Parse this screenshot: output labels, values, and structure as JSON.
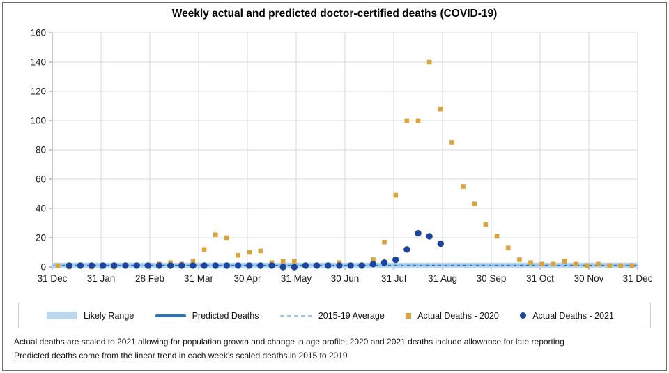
{
  "chart_data": {
    "type": "scatter",
    "title": "Weekly actual and predicted doctor-certified deaths (COVID-19)",
    "xlabel": "",
    "ylabel": "",
    "x_unit": "week of year (weekly points, Jan–Dec)",
    "x_tick_labels": [
      "31 Dec",
      "31 Jan",
      "28 Feb",
      "31 Mar",
      "30 Apr",
      "31 May",
      "30 Jun",
      "31 Jul",
      "31 Aug",
      "30 Sep",
      "31 Oct",
      "30 Nov",
      "31 Dec"
    ],
    "ylim": [
      0,
      160
    ],
    "yticks": [
      0,
      20,
      40,
      60,
      80,
      100,
      120,
      140,
      160
    ],
    "grid": true,
    "weeks": 52,
    "legend_position": "bottom",
    "series": [
      {
        "name": "Likely Range",
        "type": "band",
        "color": "#BDD7EE",
        "low": 0,
        "high": 3
      },
      {
        "name": "Predicted Deaths",
        "type": "line",
        "color": "#2E74B5",
        "value": 1
      },
      {
        "name": "2015-19 Average",
        "type": "line-dashed",
        "color": "#9DC3E6",
        "value": 1
      },
      {
        "name": "Actual Deaths - 2020",
        "type": "scatter",
        "marker": "square",
        "color": "#D9A43C",
        "weekly_values": [
          1,
          0,
          1,
          0,
          1,
          0,
          1,
          1,
          1,
          2,
          3,
          2,
          4,
          12,
          22,
          20,
          8,
          10,
          11,
          3,
          4,
          4,
          1,
          1,
          1,
          3,
          1,
          1,
          5,
          17,
          49,
          100,
          100,
          140,
          108,
          85,
          55,
          43,
          29,
          21,
          13,
          5,
          3,
          2,
          2,
          4,
          2,
          1,
          2,
          1,
          1,
          1
        ]
      },
      {
        "name": "Actual Deaths - 2021",
        "type": "scatter",
        "marker": "circle",
        "color": "#1B459C",
        "weekly_values": [
          null,
          1,
          1,
          1,
          1,
          1,
          1,
          1,
          1,
          1,
          1,
          1,
          1,
          1,
          1,
          1,
          1,
          1,
          1,
          1,
          0,
          0,
          1,
          1,
          1,
          1,
          1,
          1,
          2,
          3,
          5,
          12,
          23,
          21,
          16
        ]
      }
    ]
  },
  "footnotes": {
    "line1": "Actual deaths are scaled to 2021 allowing for population growth and change in age profile; 2020 and 2021 deaths include allowance for late reporting",
    "line2": "Predicted deaths come from the linear trend in each week's scaled deaths in 2015 to 2019"
  },
  "colors": {
    "gridline": "#D9D9D9",
    "axis": "#A6A6A6",
    "tick_label": "#1A1A1A",
    "title": "#000000",
    "frame_border": "#6D6D6D",
    "legend_border": "#CFCFCF"
  }
}
